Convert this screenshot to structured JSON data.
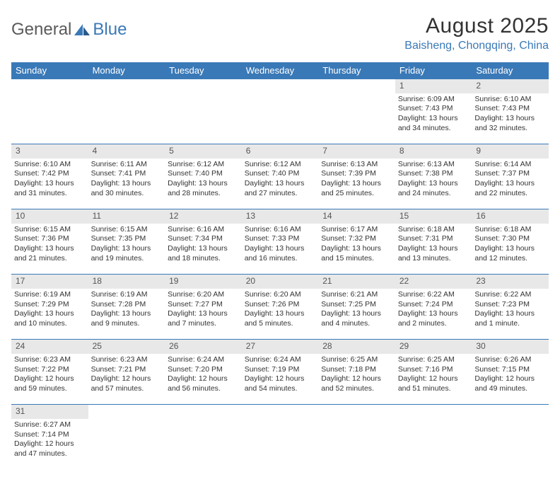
{
  "brand": {
    "part1": "General",
    "part2": "Blue"
  },
  "title": "August 2025",
  "subtitle": "Baisheng, Chongqing, China",
  "headers": [
    "Sunday",
    "Monday",
    "Tuesday",
    "Wednesday",
    "Thursday",
    "Friday",
    "Saturday"
  ],
  "colors": {
    "header_bg": "#3a79b7",
    "header_fg": "#ffffff",
    "daynum_bg": "#e8e8e8",
    "border": "#3a79b7",
    "subtitle": "#3a79b7",
    "text": "#333333"
  },
  "weeks": [
    [
      null,
      null,
      null,
      null,
      null,
      {
        "n": "1",
        "sr": "Sunrise: 6:09 AM",
        "ss": "Sunset: 7:43 PM",
        "d1": "Daylight: 13 hours",
        "d2": "and 34 minutes."
      },
      {
        "n": "2",
        "sr": "Sunrise: 6:10 AM",
        "ss": "Sunset: 7:43 PM",
        "d1": "Daylight: 13 hours",
        "d2": "and 32 minutes."
      }
    ],
    [
      {
        "n": "3",
        "sr": "Sunrise: 6:10 AM",
        "ss": "Sunset: 7:42 PM",
        "d1": "Daylight: 13 hours",
        "d2": "and 31 minutes."
      },
      {
        "n": "4",
        "sr": "Sunrise: 6:11 AM",
        "ss": "Sunset: 7:41 PM",
        "d1": "Daylight: 13 hours",
        "d2": "and 30 minutes."
      },
      {
        "n": "5",
        "sr": "Sunrise: 6:12 AM",
        "ss": "Sunset: 7:40 PM",
        "d1": "Daylight: 13 hours",
        "d2": "and 28 minutes."
      },
      {
        "n": "6",
        "sr": "Sunrise: 6:12 AM",
        "ss": "Sunset: 7:40 PM",
        "d1": "Daylight: 13 hours",
        "d2": "and 27 minutes."
      },
      {
        "n": "7",
        "sr": "Sunrise: 6:13 AM",
        "ss": "Sunset: 7:39 PM",
        "d1": "Daylight: 13 hours",
        "d2": "and 25 minutes."
      },
      {
        "n": "8",
        "sr": "Sunrise: 6:13 AM",
        "ss": "Sunset: 7:38 PM",
        "d1": "Daylight: 13 hours",
        "d2": "and 24 minutes."
      },
      {
        "n": "9",
        "sr": "Sunrise: 6:14 AM",
        "ss": "Sunset: 7:37 PM",
        "d1": "Daylight: 13 hours",
        "d2": "and 22 minutes."
      }
    ],
    [
      {
        "n": "10",
        "sr": "Sunrise: 6:15 AM",
        "ss": "Sunset: 7:36 PM",
        "d1": "Daylight: 13 hours",
        "d2": "and 21 minutes."
      },
      {
        "n": "11",
        "sr": "Sunrise: 6:15 AM",
        "ss": "Sunset: 7:35 PM",
        "d1": "Daylight: 13 hours",
        "d2": "and 19 minutes."
      },
      {
        "n": "12",
        "sr": "Sunrise: 6:16 AM",
        "ss": "Sunset: 7:34 PM",
        "d1": "Daylight: 13 hours",
        "d2": "and 18 minutes."
      },
      {
        "n": "13",
        "sr": "Sunrise: 6:16 AM",
        "ss": "Sunset: 7:33 PM",
        "d1": "Daylight: 13 hours",
        "d2": "and 16 minutes."
      },
      {
        "n": "14",
        "sr": "Sunrise: 6:17 AM",
        "ss": "Sunset: 7:32 PM",
        "d1": "Daylight: 13 hours",
        "d2": "and 15 minutes."
      },
      {
        "n": "15",
        "sr": "Sunrise: 6:18 AM",
        "ss": "Sunset: 7:31 PM",
        "d1": "Daylight: 13 hours",
        "d2": "and 13 minutes."
      },
      {
        "n": "16",
        "sr": "Sunrise: 6:18 AM",
        "ss": "Sunset: 7:30 PM",
        "d1": "Daylight: 13 hours",
        "d2": "and 12 minutes."
      }
    ],
    [
      {
        "n": "17",
        "sr": "Sunrise: 6:19 AM",
        "ss": "Sunset: 7:29 PM",
        "d1": "Daylight: 13 hours",
        "d2": "and 10 minutes."
      },
      {
        "n": "18",
        "sr": "Sunrise: 6:19 AM",
        "ss": "Sunset: 7:28 PM",
        "d1": "Daylight: 13 hours",
        "d2": "and 9 minutes."
      },
      {
        "n": "19",
        "sr": "Sunrise: 6:20 AM",
        "ss": "Sunset: 7:27 PM",
        "d1": "Daylight: 13 hours",
        "d2": "and 7 minutes."
      },
      {
        "n": "20",
        "sr": "Sunrise: 6:20 AM",
        "ss": "Sunset: 7:26 PM",
        "d1": "Daylight: 13 hours",
        "d2": "and 5 minutes."
      },
      {
        "n": "21",
        "sr": "Sunrise: 6:21 AM",
        "ss": "Sunset: 7:25 PM",
        "d1": "Daylight: 13 hours",
        "d2": "and 4 minutes."
      },
      {
        "n": "22",
        "sr": "Sunrise: 6:22 AM",
        "ss": "Sunset: 7:24 PM",
        "d1": "Daylight: 13 hours",
        "d2": "and 2 minutes."
      },
      {
        "n": "23",
        "sr": "Sunrise: 6:22 AM",
        "ss": "Sunset: 7:23 PM",
        "d1": "Daylight: 13 hours",
        "d2": "and 1 minute."
      }
    ],
    [
      {
        "n": "24",
        "sr": "Sunrise: 6:23 AM",
        "ss": "Sunset: 7:22 PM",
        "d1": "Daylight: 12 hours",
        "d2": "and 59 minutes."
      },
      {
        "n": "25",
        "sr": "Sunrise: 6:23 AM",
        "ss": "Sunset: 7:21 PM",
        "d1": "Daylight: 12 hours",
        "d2": "and 57 minutes."
      },
      {
        "n": "26",
        "sr": "Sunrise: 6:24 AM",
        "ss": "Sunset: 7:20 PM",
        "d1": "Daylight: 12 hours",
        "d2": "and 56 minutes."
      },
      {
        "n": "27",
        "sr": "Sunrise: 6:24 AM",
        "ss": "Sunset: 7:19 PM",
        "d1": "Daylight: 12 hours",
        "d2": "and 54 minutes."
      },
      {
        "n": "28",
        "sr": "Sunrise: 6:25 AM",
        "ss": "Sunset: 7:18 PM",
        "d1": "Daylight: 12 hours",
        "d2": "and 52 minutes."
      },
      {
        "n": "29",
        "sr": "Sunrise: 6:25 AM",
        "ss": "Sunset: 7:16 PM",
        "d1": "Daylight: 12 hours",
        "d2": "and 51 minutes."
      },
      {
        "n": "30",
        "sr": "Sunrise: 6:26 AM",
        "ss": "Sunset: 7:15 PM",
        "d1": "Daylight: 12 hours",
        "d2": "and 49 minutes."
      }
    ],
    [
      {
        "n": "31",
        "sr": "Sunrise: 6:27 AM",
        "ss": "Sunset: 7:14 PM",
        "d1": "Daylight: 12 hours",
        "d2": "and 47 minutes."
      },
      null,
      null,
      null,
      null,
      null,
      null
    ]
  ]
}
